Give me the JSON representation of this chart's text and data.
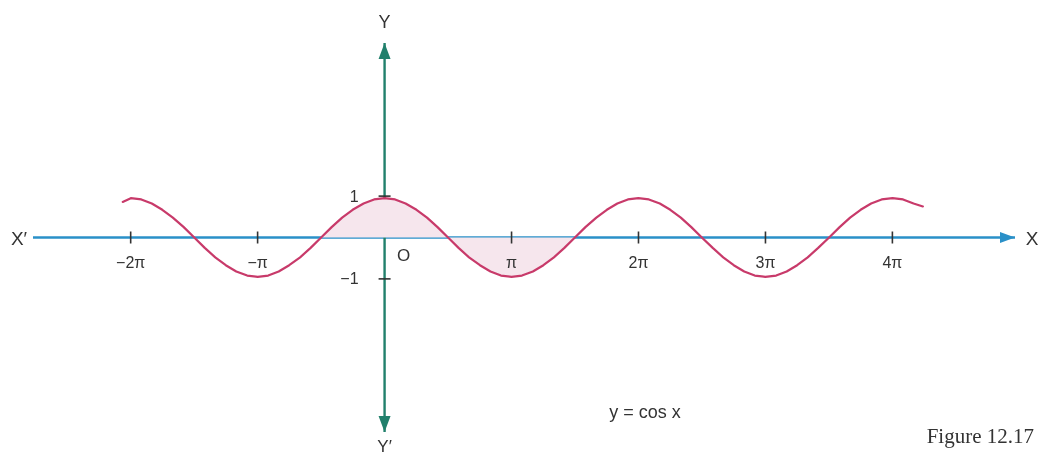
{
  "chart_data": {
    "type": "line",
    "xlabel": "X",
    "ylabel": "Y",
    "annotations": [
      "X′",
      "Y′",
      "O",
      "y = cos x",
      "Figure 12.17"
    ],
    "xlim": [
      -8.7,
      15.6
    ],
    "ylim": [
      -4.7,
      4.7
    ],
    "xticks": [
      {
        "value": -6.283,
        "label": "−2π"
      },
      {
        "value": -3.142,
        "label": "−π"
      },
      {
        "value": 3.142,
        "label": "π"
      },
      {
        "value": 6.283,
        "label": "2π"
      },
      {
        "value": 9.425,
        "label": "3π"
      },
      {
        "value": 12.566,
        "label": "4π"
      }
    ],
    "yticks": [
      1,
      {
        "value": -1,
        "label": "−1"
      }
    ],
    "series": [
      {
        "type": "area",
        "color": "#f6e6ed",
        "x": [
          -1.57,
          -1.31,
          -1.05,
          -0.79,
          -0.52,
          -0.26,
          0,
          0.26,
          0.52,
          0.79,
          1.05,
          1.31,
          1.57,
          1.83,
          2.09,
          2.36,
          2.62,
          2.88,
          3.14,
          3.4,
          3.67,
          3.93,
          4.19,
          4.45,
          4.71
        ],
        "values": [
          0,
          0.25,
          0.48,
          0.67,
          0.82,
          0.92,
          0.95,
          0.92,
          0.82,
          0.67,
          0.48,
          0.25,
          0,
          -0.25,
          -0.48,
          -0.67,
          -0.82,
          -0.92,
          -0.95,
          -0.92,
          -0.82,
          -0.67,
          -0.48,
          -0.25,
          0
        ]
      },
      {
        "type": "line",
        "color": "#c83a6a",
        "x": [
          -6.48,
          -6.28,
          -6.02,
          -5.76,
          -5.5,
          -5.24,
          -4.97,
          -4.71,
          -4.45,
          -4.19,
          -3.93,
          -3.67,
          -3.4,
          -3.14,
          -2.88,
          -2.62,
          -2.36,
          -2.09,
          -1.83,
          -1.57,
          -1.31,
          -1.05,
          -0.79,
          -0.52,
          -0.26,
          0,
          0.26,
          0.52,
          0.79,
          1.05,
          1.31,
          1.57,
          1.83,
          2.09,
          2.36,
          2.62,
          2.88,
          3.14,
          3.4,
          3.67,
          3.93,
          4.19,
          4.45,
          4.71,
          4.97,
          5.24,
          5.5,
          5.76,
          6.02,
          6.28,
          6.54,
          6.81,
          7.07,
          7.33,
          7.59,
          7.85,
          8.12,
          8.38,
          8.64,
          8.9,
          9.16,
          9.42,
          9.69,
          9.95,
          10.21,
          10.47,
          10.73,
          11.0,
          11.26,
          11.52,
          11.78,
          12.04,
          12.3,
          12.57,
          12.83,
          13.09,
          13.32
        ],
        "values": [
          0.86,
          0.95,
          0.92,
          0.82,
          0.67,
          0.48,
          0.25,
          0,
          -0.25,
          -0.48,
          -0.67,
          -0.82,
          -0.92,
          -0.95,
          -0.92,
          -0.82,
          -0.67,
          -0.48,
          -0.25,
          0,
          0.25,
          0.48,
          0.67,
          0.82,
          0.92,
          0.95,
          0.92,
          0.82,
          0.67,
          0.48,
          0.25,
          0,
          -0.25,
          -0.48,
          -0.67,
          -0.82,
          -0.92,
          -0.95,
          -0.92,
          -0.82,
          -0.67,
          -0.48,
          -0.25,
          0,
          0.25,
          0.48,
          0.67,
          0.82,
          0.92,
          0.95,
          0.92,
          0.82,
          0.67,
          0.48,
          0.25,
          0,
          -0.25,
          -0.48,
          -0.67,
          -0.82,
          -0.92,
          -0.95,
          -0.92,
          -0.82,
          -0.67,
          -0.48,
          -0.25,
          0,
          0.25,
          0.48,
          0.67,
          0.82,
          0.92,
          0.95,
          0.92,
          0.82,
          0.75
        ]
      }
    ]
  }
}
